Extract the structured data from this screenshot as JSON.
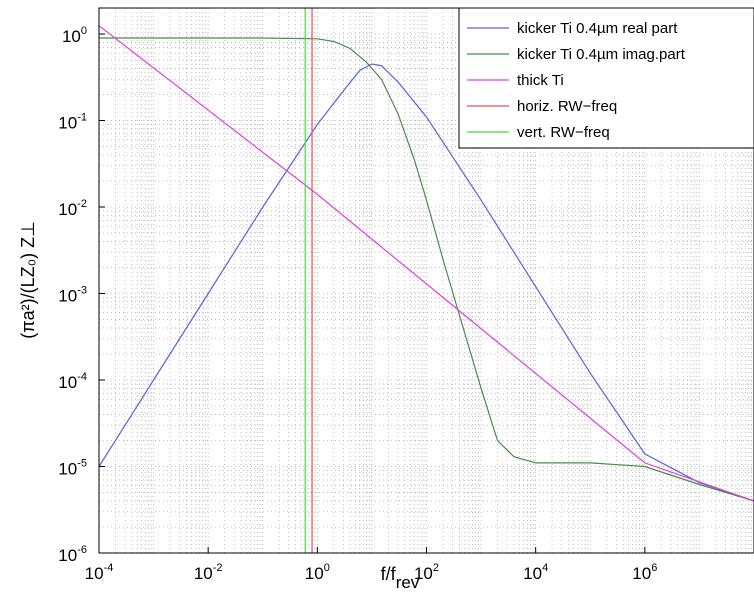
{
  "chart_data": {
    "type": "line",
    "xlabel": "f/f",
    "xlabel_sub": "rev",
    "ylabel": "(πa²)/(LZ₀)  Z⊥",
    "x_scale": "log",
    "y_scale": "log",
    "xlim": [
      0.0001,
      100000000
    ],
    "ylim": [
      1e-06,
      2
    ],
    "grid": true,
    "legend_position": "top-right",
    "x_ticks": [
      {
        "base": "10",
        "exp": "-4",
        "value": 0.0001
      },
      {
        "base": "10",
        "exp": "-2",
        "value": 0.01
      },
      {
        "base": "10",
        "exp": "0",
        "value": 1
      },
      {
        "base": "10",
        "exp": "2",
        "value": 100
      },
      {
        "base": "10",
        "exp": "4",
        "value": 10000
      },
      {
        "base": "10",
        "exp": "6",
        "value": 1000000
      }
    ],
    "y_ticks": [
      {
        "base": "10",
        "exp": "-6",
        "value": 1e-06
      },
      {
        "base": "10",
        "exp": "-5",
        "value": 1e-05
      },
      {
        "base": "10",
        "exp": "-4",
        "value": 0.0001
      },
      {
        "base": "10",
        "exp": "-3",
        "value": 0.001
      },
      {
        "base": "10",
        "exp": "-2",
        "value": 0.01
      },
      {
        "base": "10",
        "exp": "-1",
        "value": 0.1
      },
      {
        "base": "10",
        "exp": "0",
        "value": 1
      }
    ],
    "series": [
      {
        "name": "kicker Ti 0.4µm real part",
        "color": "#5563e0",
        "x": [
          0.0001,
          0.001,
          0.01,
          0.1,
          1,
          3,
          6,
          10,
          15,
          30,
          100,
          1000,
          10000,
          100000,
          1000000,
          10000000,
          100000000
        ],
        "y": [
          1e-05,
          0.0001,
          0.001,
          0.01,
          0.09,
          0.22,
          0.38,
          0.45,
          0.43,
          0.28,
          0.11,
          0.012,
          0.0012,
          0.00012,
          1.4e-05,
          6.5e-06,
          4e-06
        ]
      },
      {
        "name": "kicker Ti 0.4µm imag.part",
        "color": "#4a8a4a",
        "x": [
          0.0001,
          0.1,
          1,
          2,
          4,
          8,
          15,
          30,
          60,
          100,
          200,
          500,
          1000,
          2000,
          4000,
          10000,
          100000,
          1000000,
          10000000,
          100000000
        ],
        "y": [
          0.9,
          0.9,
          0.88,
          0.82,
          0.68,
          0.47,
          0.3,
          0.12,
          0.035,
          0.012,
          0.0025,
          0.00035,
          8e-05,
          2e-05,
          1.3e-05,
          1.1e-05,
          1.1e-05,
          1e-05,
          6.2e-06,
          4e-06
        ]
      },
      {
        "name": "thick Ti",
        "color": "#e040e0",
        "x": [
          0.0001,
          1,
          1000000,
          100000000
        ],
        "y": [
          1.25,
          0.014,
          1.1e-05,
          4e-06
        ]
      },
      {
        "name": "horiz. RW−freq",
        "color": "#e05050",
        "vertical_at_x": 0.8
      },
      {
        "name": "vert. RW−freq",
        "color": "#44dd44",
        "vertical_at_x": 0.6
      }
    ]
  }
}
